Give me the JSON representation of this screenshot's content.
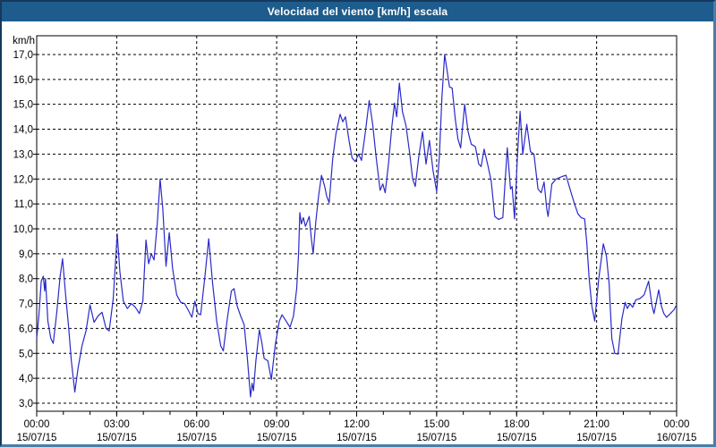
{
  "window": {
    "title": "Velocidad del viento [km/h] escala"
  },
  "colors": {
    "title_bar_bg": "#1d5c8d",
    "title_text": "#ffffff",
    "outer_frame_dark": "#16395d",
    "outer_frame_light": "#4c7da6",
    "plot_background": "#ffffff",
    "plot_border": "#000000",
    "grid_line": "#000000",
    "tick_text": "#000000",
    "series_line": "#2a2ac8"
  },
  "chart_data": {
    "type": "line",
    "title": "Velocidad del viento [km/h] escala",
    "ylabel": "km/h",
    "xlabel": "",
    "grid": "dashed black major grid; vertical every 3 h, horizontal every 1.0 km/h; hourly minor ticks on x-axis",
    "legend_position": "none",
    "xlim_hours": [
      0,
      24
    ],
    "ylim": [
      2.68,
      17.68
    ],
    "y_tick_values": [
      3,
      4,
      5,
      6,
      7,
      8,
      9,
      10,
      11,
      12,
      13,
      14,
      15,
      16,
      17
    ],
    "y_tick_labels": [
      "3,0",
      "4,0",
      "5,0",
      "6,0",
      "7,0",
      "8,0",
      "9,0",
      "10,0",
      "11,0",
      "12,0",
      "13,0",
      "14,0",
      "15,0",
      "16,0",
      "17,0"
    ],
    "x_tick_hours": [
      0,
      3,
      6,
      9,
      12,
      15,
      18,
      21,
      24
    ],
    "x_ticks": [
      {
        "time": "00:00",
        "date": "15/07/15"
      },
      {
        "time": "03:00",
        "date": "15/07/15"
      },
      {
        "time": "06:00",
        "date": "15/07/15"
      },
      {
        "time": "09:00",
        "date": "15/07/15"
      },
      {
        "time": "12:00",
        "date": "15/07/15"
      },
      {
        "time": "15:00",
        "date": "15/07/15"
      },
      {
        "time": "18:00",
        "date": "15/07/15"
      },
      {
        "time": "21:00",
        "date": "15/07/15"
      },
      {
        "time": "00:00",
        "date": "16/07/15"
      }
    ],
    "minor_x_tick_every_hours": 1,
    "series": [
      {
        "name": "Velocidad del viento [km/h]",
        "color": "#2a2ac8",
        "points": [
          [
            0.0,
            5.6
          ],
          [
            0.08,
            6.5
          ],
          [
            0.17,
            7.9
          ],
          [
            0.25,
            8.1
          ],
          [
            0.3,
            7.5
          ],
          [
            0.33,
            8.0
          ],
          [
            0.42,
            6.3
          ],
          [
            0.53,
            5.6
          ],
          [
            0.62,
            5.4
          ],
          [
            0.75,
            6.6
          ],
          [
            0.88,
            8.1
          ],
          [
            0.97,
            8.8
          ],
          [
            1.08,
            7.4
          ],
          [
            1.2,
            6.0
          ],
          [
            1.3,
            4.7
          ],
          [
            1.43,
            3.45
          ],
          [
            1.55,
            4.4
          ],
          [
            1.7,
            5.3
          ],
          [
            1.85,
            5.9
          ],
          [
            2.0,
            6.95
          ],
          [
            2.15,
            6.25
          ],
          [
            2.3,
            6.5
          ],
          [
            2.45,
            6.65
          ],
          [
            2.6,
            6.0
          ],
          [
            2.72,
            5.9
          ],
          [
            2.87,
            7.2
          ],
          [
            3.02,
            9.8
          ],
          [
            3.12,
            8.3
          ],
          [
            3.25,
            7.1
          ],
          [
            3.4,
            6.8
          ],
          [
            3.55,
            7.0
          ],
          [
            3.7,
            6.85
          ],
          [
            3.85,
            6.6
          ],
          [
            3.98,
            7.1
          ],
          [
            4.1,
            9.55
          ],
          [
            4.2,
            8.6
          ],
          [
            4.3,
            9.0
          ],
          [
            4.4,
            8.75
          ],
          [
            4.52,
            10.2
          ],
          [
            4.63,
            12.0
          ],
          [
            4.73,
            10.8
          ],
          [
            4.85,
            8.5
          ],
          [
            4.97,
            9.85
          ],
          [
            5.1,
            8.4
          ],
          [
            5.25,
            7.35
          ],
          [
            5.4,
            7.05
          ],
          [
            5.55,
            7.0
          ],
          [
            5.7,
            6.7
          ],
          [
            5.82,
            6.45
          ],
          [
            5.93,
            7.1
          ],
          [
            6.05,
            6.6
          ],
          [
            6.15,
            6.55
          ],
          [
            6.3,
            8.0
          ],
          [
            6.45,
            9.6
          ],
          [
            6.6,
            7.8
          ],
          [
            6.75,
            6.3
          ],
          [
            6.9,
            5.3
          ],
          [
            7.0,
            5.1
          ],
          [
            7.15,
            6.4
          ],
          [
            7.3,
            7.5
          ],
          [
            7.4,
            7.6
          ],
          [
            7.52,
            6.9
          ],
          [
            7.65,
            6.5
          ],
          [
            7.78,
            6.15
          ],
          [
            7.9,
            4.8
          ],
          [
            8.02,
            3.25
          ],
          [
            8.08,
            3.8
          ],
          [
            8.13,
            3.5
          ],
          [
            8.22,
            4.7
          ],
          [
            8.35,
            5.95
          ],
          [
            8.45,
            5.4
          ],
          [
            8.53,
            4.8
          ],
          [
            8.67,
            4.7
          ],
          [
            8.8,
            3.95
          ],
          [
            8.95,
            5.35
          ],
          [
            9.1,
            6.3
          ],
          [
            9.2,
            6.55
          ],
          [
            9.35,
            6.3
          ],
          [
            9.5,
            6.05
          ],
          [
            9.63,
            6.5
          ],
          [
            9.75,
            7.6
          ],
          [
            9.82,
            9.0
          ],
          [
            9.87,
            10.65
          ],
          [
            9.93,
            10.2
          ],
          [
            10.0,
            10.45
          ],
          [
            10.08,
            10.1
          ],
          [
            10.22,
            10.5
          ],
          [
            10.3,
            9.6
          ],
          [
            10.37,
            9.0
          ],
          [
            10.47,
            10.3
          ],
          [
            10.57,
            11.3
          ],
          [
            10.68,
            12.15
          ],
          [
            10.8,
            11.7
          ],
          [
            10.88,
            11.3
          ],
          [
            10.97,
            11.05
          ],
          [
            11.1,
            12.8
          ],
          [
            11.22,
            13.8
          ],
          [
            11.38,
            14.6
          ],
          [
            11.48,
            14.3
          ],
          [
            11.58,
            14.5
          ],
          [
            11.72,
            13.5
          ],
          [
            11.83,
            12.85
          ],
          [
            11.95,
            12.7
          ],
          [
            12.07,
            13.0
          ],
          [
            12.18,
            12.75
          ],
          [
            12.33,
            13.9
          ],
          [
            12.47,
            15.15
          ],
          [
            12.6,
            14.2
          ],
          [
            12.73,
            12.9
          ],
          [
            12.88,
            11.55
          ],
          [
            12.98,
            11.8
          ],
          [
            13.07,
            11.45
          ],
          [
            13.2,
            12.7
          ],
          [
            13.32,
            14.1
          ],
          [
            13.42,
            15.05
          ],
          [
            13.5,
            14.5
          ],
          [
            13.6,
            15.85
          ],
          [
            13.72,
            14.7
          ],
          [
            13.85,
            14.15
          ],
          [
            13.98,
            13.1
          ],
          [
            14.1,
            12.0
          ],
          [
            14.2,
            11.7
          ],
          [
            14.33,
            12.9
          ],
          [
            14.47,
            13.9
          ],
          [
            14.6,
            12.6
          ],
          [
            14.73,
            13.55
          ],
          [
            14.87,
            12.3
          ],
          [
            15.0,
            11.5
          ],
          [
            15.1,
            12.9
          ],
          [
            15.2,
            15.3
          ],
          [
            15.3,
            17.0
          ],
          [
            15.4,
            16.3
          ],
          [
            15.48,
            15.7
          ],
          [
            15.58,
            15.65
          ],
          [
            15.7,
            14.4
          ],
          [
            15.8,
            13.6
          ],
          [
            15.9,
            13.25
          ],
          [
            16.05,
            15.0
          ],
          [
            16.18,
            13.9
          ],
          [
            16.3,
            13.4
          ],
          [
            16.45,
            13.3
          ],
          [
            16.58,
            12.6
          ],
          [
            16.67,
            12.5
          ],
          [
            16.78,
            13.2
          ],
          [
            16.92,
            12.55
          ],
          [
            17.05,
            11.9
          ],
          [
            17.18,
            10.5
          ],
          [
            17.32,
            10.38
          ],
          [
            17.48,
            10.45
          ],
          [
            17.65,
            13.25
          ],
          [
            17.77,
            11.6
          ],
          [
            17.83,
            11.7
          ],
          [
            17.92,
            10.4
          ],
          [
            18.03,
            12.9
          ],
          [
            18.13,
            14.72
          ],
          [
            18.23,
            13.0
          ],
          [
            18.38,
            14.2
          ],
          [
            18.52,
            13.1
          ],
          [
            18.65,
            13.0
          ],
          [
            18.8,
            11.6
          ],
          [
            18.92,
            11.45
          ],
          [
            19.03,
            11.88
          ],
          [
            19.13,
            10.8
          ],
          [
            19.18,
            10.5
          ],
          [
            19.32,
            11.8
          ],
          [
            19.48,
            12.0
          ],
          [
            19.7,
            12.1
          ],
          [
            19.85,
            12.15
          ],
          [
            20.03,
            11.5
          ],
          [
            20.17,
            11.0
          ],
          [
            20.3,
            10.6
          ],
          [
            20.42,
            10.45
          ],
          [
            20.55,
            10.4
          ],
          [
            20.63,
            9.45
          ],
          [
            20.72,
            8.0
          ],
          [
            20.82,
            6.9
          ],
          [
            20.93,
            6.3
          ],
          [
            21.08,
            8.0
          ],
          [
            21.25,
            9.4
          ],
          [
            21.37,
            8.9
          ],
          [
            21.47,
            7.8
          ],
          [
            21.57,
            5.6
          ],
          [
            21.68,
            5.0
          ],
          [
            21.8,
            4.97
          ],
          [
            21.95,
            6.4
          ],
          [
            22.07,
            7.05
          ],
          [
            22.15,
            6.8
          ],
          [
            22.25,
            7.0
          ],
          [
            22.35,
            6.85
          ],
          [
            22.47,
            7.15
          ],
          [
            22.62,
            7.2
          ],
          [
            22.78,
            7.35
          ],
          [
            22.95,
            7.9
          ],
          [
            23.08,
            6.9
          ],
          [
            23.15,
            6.6
          ],
          [
            23.33,
            7.55
          ],
          [
            23.43,
            6.9
          ],
          [
            23.52,
            6.6
          ],
          [
            23.62,
            6.45
          ],
          [
            23.77,
            6.6
          ],
          [
            23.9,
            6.75
          ],
          [
            24.0,
            6.95
          ]
        ]
      }
    ]
  }
}
